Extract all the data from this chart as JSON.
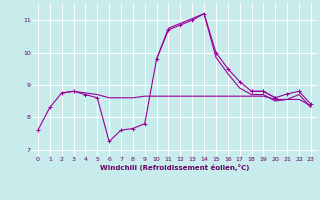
{
  "xlabel": "Windchill (Refroidissement éolien,°C)",
  "background_color": "#c8ecec",
  "line_color": "#990099",
  "grid_color": "#ffffff",
  "axis_label_color": "#660066",
  "tick_label_color": "#660066",
  "xlim": [
    -0.5,
    23.5
  ],
  "ylim": [
    6.8,
    11.5
  ],
  "yticks": [
    7,
    8,
    9,
    10,
    11
  ],
  "xticks": [
    0,
    1,
    2,
    3,
    4,
    5,
    6,
    7,
    8,
    9,
    10,
    11,
    12,
    13,
    14,
    15,
    16,
    17,
    18,
    19,
    20,
    21,
    22,
    23
  ],
  "series1": [
    7.6,
    8.3,
    8.75,
    8.8,
    8.7,
    8.6,
    7.25,
    7.6,
    7.65,
    7.8,
    9.8,
    10.7,
    10.85,
    11.0,
    11.2,
    10.0,
    9.5,
    9.1,
    8.8,
    8.8,
    8.6,
    8.72,
    8.8,
    8.4
  ],
  "series2": [
    null,
    null,
    8.75,
    8.8,
    8.75,
    8.7,
    8.6,
    8.6,
    8.6,
    8.65,
    8.65,
    8.65,
    8.65,
    8.65,
    8.65,
    8.65,
    8.65,
    8.65,
    8.65,
    8.65,
    8.55,
    8.55,
    8.55,
    8.35
  ],
  "series3": [
    null,
    null,
    null,
    null,
    null,
    null,
    null,
    null,
    null,
    null,
    null,
    null,
    null,
    null,
    null,
    null,
    null,
    null,
    8.8,
    8.8,
    8.6,
    null,
    8.8,
    null
  ],
  "series4": [
    null,
    null,
    null,
    null,
    null,
    null,
    null,
    null,
    null,
    null,
    9.8,
    10.75,
    10.9,
    11.05,
    11.2,
    9.85,
    9.35,
    8.9,
    8.7,
    8.7,
    8.5,
    8.55,
    8.7,
    8.3
  ]
}
